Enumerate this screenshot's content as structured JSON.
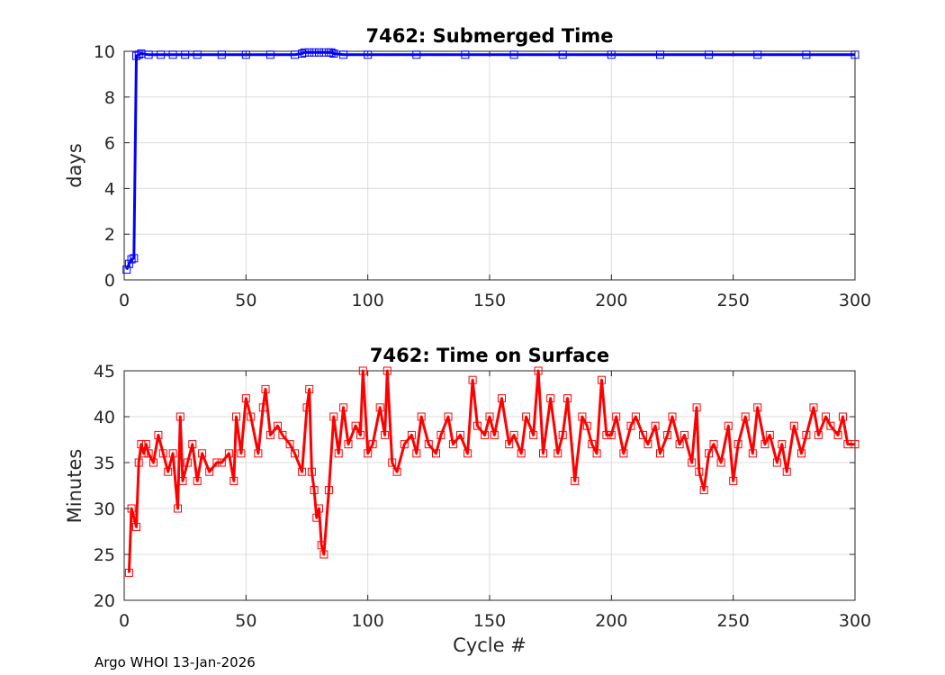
{
  "footer": "Argo WHOI 13-Jan-2026",
  "chart_data": [
    {
      "type": "line",
      "title": "7462: Submerged Time",
      "xlabel": "",
      "ylabel": "days",
      "xlim": [
        0,
        300
      ],
      "ylim": [
        0,
        10
      ],
      "xticks": [
        0,
        50,
        100,
        150,
        200,
        250,
        300
      ],
      "yticks": [
        0,
        2,
        4,
        6,
        8,
        10
      ],
      "grid": true,
      "marker": "square",
      "series": [
        {
          "name": "Submerged Time",
          "color": "#0000ff",
          "x": [
            1,
            2,
            3,
            4,
            5,
            6,
            7,
            10,
            15,
            20,
            25,
            30,
            40,
            50,
            60,
            70,
            73,
            74,
            76,
            78,
            80,
            82,
            84,
            85,
            86,
            90,
            100,
            120,
            140,
            160,
            180,
            200,
            220,
            240,
            260,
            280,
            300
          ],
          "y": [
            0.45,
            0.7,
            0.9,
            0.95,
            9.8,
            9.85,
            9.9,
            9.85,
            9.85,
            9.85,
            9.85,
            9.85,
            9.85,
            9.85,
            9.85,
            9.85,
            9.9,
            9.95,
            9.95,
            9.95,
            9.95,
            9.95,
            9.95,
            9.95,
            9.9,
            9.85,
            9.85,
            9.85,
            9.85,
            9.85,
            9.85,
            9.85,
            9.85,
            9.85,
            9.85,
            9.85,
            9.85
          ]
        }
      ]
    },
    {
      "type": "line",
      "title": "7462: Time on Surface",
      "xlabel": "Cycle #",
      "ylabel": "Minutes",
      "xlim": [
        0,
        300
      ],
      "ylim": [
        20,
        45
      ],
      "xticks": [
        0,
        50,
        100,
        150,
        200,
        250,
        300
      ],
      "yticks": [
        20,
        25,
        30,
        35,
        40,
        45
      ],
      "grid": true,
      "marker": "square",
      "series": [
        {
          "name": "Time on Surface",
          "color": "#ff0000",
          "x": [
            2,
            3,
            4,
            5,
            6,
            7,
            8,
            9,
            10,
            12,
            14,
            16,
            18,
            20,
            22,
            23,
            24,
            26,
            28,
            30,
            32,
            35,
            38,
            40,
            43,
            45,
            46,
            48,
            50,
            52,
            55,
            57,
            58,
            60,
            63,
            65,
            68,
            70,
            73,
            75,
            76,
            77,
            78,
            79,
            80,
            81,
            82,
            84,
            86,
            88,
            90,
            92,
            95,
            97,
            98,
            100,
            102,
            105,
            107,
            108,
            110,
            112,
            115,
            118,
            120,
            122,
            125,
            128,
            130,
            133,
            135,
            138,
            141,
            143,
            145,
            148,
            150,
            152,
            155,
            158,
            160,
            163,
            165,
            168,
            170,
            172,
            175,
            178,
            180,
            182,
            185,
            188,
            190,
            192,
            194,
            196,
            198,
            200,
            202,
            205,
            208,
            210,
            213,
            215,
            218,
            220,
            223,
            225,
            228,
            230,
            233,
            235,
            236,
            238,
            240,
            242,
            245,
            248,
            250,
            252,
            255,
            258,
            260,
            263,
            265,
            268,
            270,
            272,
            275,
            278,
            280,
            283,
            285,
            288,
            290,
            293,
            295,
            297,
            300
          ],
          "y": [
            23,
            30,
            29,
            28,
            35,
            37,
            36,
            37,
            36,
            35,
            38,
            36,
            34,
            36,
            30,
            40,
            33,
            35,
            37,
            33,
            36,
            34,
            35,
            35,
            36,
            33,
            40,
            36,
            42,
            40,
            36,
            41,
            43,
            38,
            39,
            38,
            37,
            36,
            34,
            41,
            43,
            34,
            32,
            29,
            30,
            26,
            25,
            32,
            40,
            36,
            41,
            37,
            39,
            38,
            45,
            36,
            37,
            41,
            38,
            45,
            35,
            34,
            37,
            38,
            36,
            40,
            37,
            36,
            38,
            40,
            37,
            38,
            36,
            44,
            39,
            38,
            40,
            38,
            42,
            37,
            38,
            36,
            40,
            38,
            45,
            36,
            42,
            36,
            38,
            42,
            33,
            40,
            39,
            37,
            36,
            44,
            38,
            38,
            40,
            36,
            39,
            40,
            38,
            37,
            39,
            36,
            38,
            40,
            37,
            38,
            35,
            41,
            34,
            32,
            36,
            37,
            35,
            39,
            33,
            37,
            40,
            36,
            41,
            37,
            38,
            35,
            37,
            34,
            39,
            36,
            38,
            41,
            38,
            40,
            39,
            38,
            40,
            37,
            37
          ]
        }
      ]
    }
  ]
}
